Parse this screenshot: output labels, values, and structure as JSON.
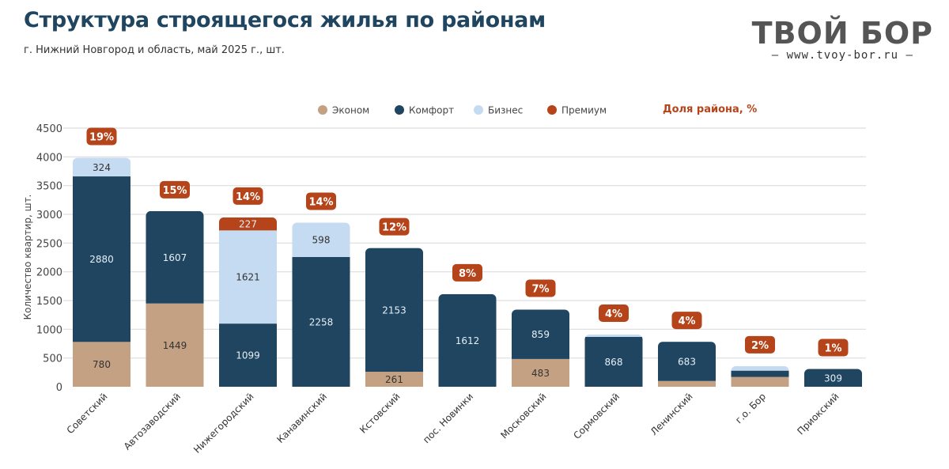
{
  "header": {
    "title": "Структура строящегося жилья по районам",
    "subtitle": "г. Нижний Новгород и область, май 2025 г., шт."
  },
  "logo": {
    "main": "ТВОЙ БОР",
    "sub": "– www.tvoy-bor.ru –"
  },
  "colors": {
    "econom": "#c4a183",
    "komfort": "#1f4560",
    "biznes": "#c5dbf2",
    "premium": "#b5441a",
    "share_badge": "#b5441a",
    "grid": "#dddddd"
  },
  "chart_data": {
    "type": "bar",
    "stacked": true,
    "title": "Структура строящегося жилья по районам",
    "subtitle": "г. Нижний Новгород и область, май 2025 г., шт.",
    "xlabel": "",
    "ylabel": "Количество квартир, шт.",
    "ylim": [
      0,
      4500
    ],
    "yticks": [
      0,
      500,
      1000,
      1500,
      2000,
      2500,
      3000,
      3500,
      4000,
      4500
    ],
    "grid": true,
    "legend_position": "top",
    "share_label": "Доля района, %",
    "categories": [
      "Советский",
      "Автозаводский",
      "Нижегородский",
      "Канавинский",
      "Кстовский",
      "пос. Новинки",
      "Московский",
      "Сормовский",
      "Ленинский",
      "г.о. Бор",
      "Приокский"
    ],
    "series": [
      {
        "name": "Эконом",
        "key": "econom",
        "values": [
          780,
          1449,
          0,
          0,
          261,
          0,
          483,
          0,
          100,
          170,
          0
        ],
        "labels": [
          "780",
          "1449",
          "",
          "",
          "261",
          "",
          "483",
          "",
          "",
          "",
          ""
        ]
      },
      {
        "name": "Комфорт",
        "key": "komfort",
        "values": [
          2880,
          1607,
          1099,
          2258,
          2153,
          1612,
          859,
          868,
          683,
          110,
          309
        ],
        "labels": [
          "2880",
          "1607",
          "1099",
          "2258",
          "2153",
          "1612",
          "859",
          "868",
          "683",
          "",
          "309"
        ]
      },
      {
        "name": "Бизнес",
        "key": "biznes",
        "values": [
          324,
          0,
          1621,
          598,
          0,
          0,
          0,
          40,
          0,
          80,
          0
        ],
        "labels": [
          "324",
          "",
          "1621",
          "598",
          "",
          "",
          "",
          "",
          "",
          "",
          ""
        ]
      },
      {
        "name": "Премиум",
        "key": "premium",
        "values": [
          0,
          0,
          227,
          0,
          0,
          0,
          0,
          0,
          0,
          0,
          0
        ],
        "labels": [
          "",
          "",
          "227",
          "",
          "",
          "",
          "",
          "",
          "",
          "",
          ""
        ]
      }
    ],
    "shares": [
      "19%",
      "15%",
      "14%",
      "14%",
      "12%",
      "8%",
      "7%",
      "4%",
      "4%",
      "2%",
      "1%"
    ]
  }
}
